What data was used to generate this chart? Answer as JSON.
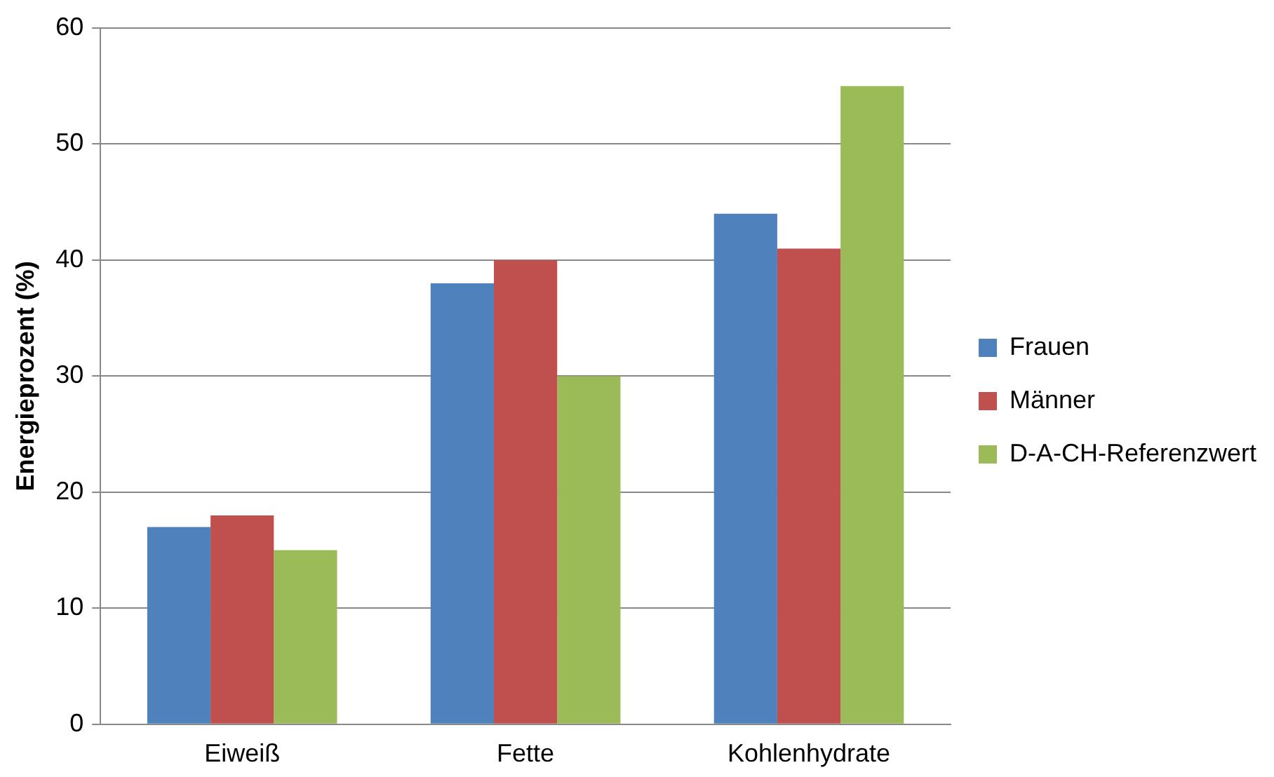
{
  "chart_data": {
    "type": "bar",
    "ylabel": "Energieprozent (%)",
    "categories": [
      "Eiweiß",
      "Fette",
      "Kohlenhydrate"
    ],
    "series": [
      {
        "name": "Frauen",
        "color": "#4f81bd",
        "values": [
          17,
          38,
          44
        ]
      },
      {
        "name": "Männer",
        "color": "#c0504d",
        "values": [
          18,
          40,
          41
        ]
      },
      {
        "name": "D-A-CH-Referenzwert",
        "color": "#9bbb59",
        "values": [
          15,
          30,
          55
        ]
      }
    ],
    "ylim": [
      0,
      60
    ],
    "yticks": [
      0,
      10,
      20,
      30,
      40,
      50,
      60
    ],
    "grid": "y",
    "legend": "right"
  }
}
